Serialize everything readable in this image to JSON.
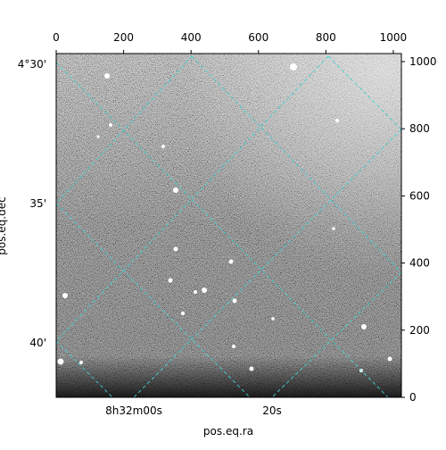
{
  "chart_data": {
    "type": "image",
    "xlabel": "pos.eq.ra",
    "ylabel": "pos.eq.dec",
    "xlim": [
      0,
      1024
    ],
    "ylim": [
      0,
      1024
    ],
    "xticks": [
      0,
      200,
      400,
      600,
      800,
      1000
    ],
    "yticks": [
      0,
      200,
      400,
      600,
      800,
      1000
    ],
    "ra_labels": [
      "8h32m00s",
      "20s"
    ],
    "dec_labels": [
      "4°30'",
      "35'",
      "40'"
    ],
    "grid_color": "#3fd0d0"
  }
}
